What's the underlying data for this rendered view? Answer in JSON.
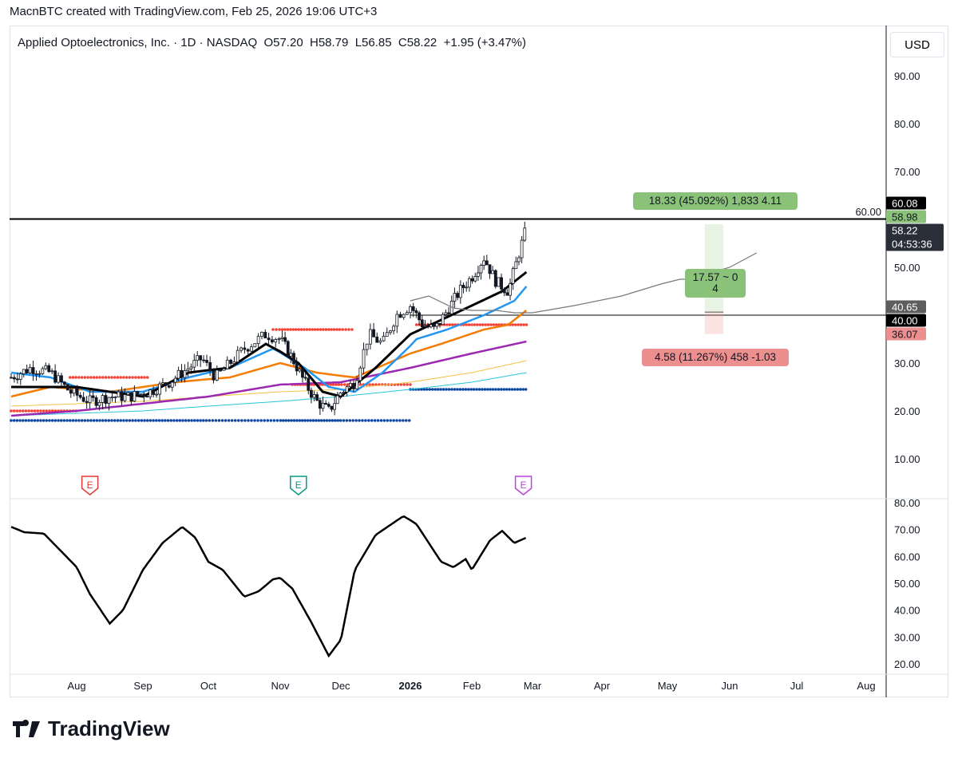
{
  "credit": "MacnBTC created with TradingView.com, Feb 25, 2026 19:06 UTC+3",
  "legend": "Applied Optoelectronics, Inc. · 1D · NASDAQ  O57.20  H58.79  L56.85  C58.22  +1.95 (+3.47%)",
  "currency": "USD",
  "logo_text": "TradingView",
  "colors": {
    "up": "#131722",
    "ema_fast": "#000000",
    "ema_blue": "#2196f3",
    "ema_orange": "#f57c00",
    "ema_purple": "#9c27b0",
    "sma_yellow": "#f5c242",
    "sma_cyan": "#26c6da",
    "dots_red": "#f44336",
    "dots_blue": "#0d47a1",
    "target": "#8bc27a",
    "stop": "#ee8f8f"
  },
  "chart_data": {
    "type": "candlestick",
    "x_unit": "months since Jul 1 2025",
    "price_axis": {
      "ticks": [
        "90.00",
        "80.00",
        "70.00",
        "60.00",
        "50.00",
        "30.00",
        "20.00",
        "10.00"
      ],
      "tick_values": [
        90,
        80,
        70,
        60,
        50,
        30,
        20,
        10
      ],
      "range": [
        0,
        96
      ]
    },
    "time_axis": {
      "labels": [
        "Aug",
        "Sep",
        "Oct",
        "Nov",
        "Dec",
        "2026",
        "Feb",
        "Mar",
        "Apr",
        "May",
        "Jun",
        "Jul",
        "Aug"
      ],
      "positions": [
        1,
        2,
        3,
        4,
        5,
        6,
        7,
        8,
        9,
        10,
        11,
        12,
        13
      ]
    },
    "price_path": [
      [
        0,
        27
      ],
      [
        0.3,
        29
      ],
      [
        0.6,
        28
      ],
      [
        0.9,
        24
      ],
      [
        1.2,
        22
      ],
      [
        1.5,
        23
      ],
      [
        1.8,
        23
      ],
      [
        2.1,
        24
      ],
      [
        2.4,
        26
      ],
      [
        2.7,
        29
      ],
      [
        2.9,
        31
      ],
      [
        3.1,
        27
      ],
      [
        3.3,
        30
      ],
      [
        3.5,
        33
      ],
      [
        3.8,
        36
      ],
      [
        4.0,
        35
      ],
      [
        4.2,
        31
      ],
      [
        4.4,
        26
      ],
      [
        4.6,
        22
      ],
      [
        4.8,
        20
      ],
      [
        5.0,
        24
      ],
      [
        5.2,
        26
      ],
      [
        5.4,
        36
      ],
      [
        5.6,
        34
      ],
      [
        5.8,
        40
      ],
      [
        6.0,
        42
      ],
      [
        6.2,
        38
      ],
      [
        6.4,
        37
      ],
      [
        6.6,
        41
      ],
      [
        6.8,
        45
      ],
      [
        7.0,
        48
      ],
      [
        7.2,
        52
      ],
      [
        7.4,
        47
      ],
      [
        7.6,
        45
      ],
      [
        7.8,
        54
      ],
      [
        7.9,
        58.2
      ]
    ],
    "ema_lines": [
      {
        "name": "EMA black",
        "color": "#000000",
        "points": [
          [
            0,
            25
          ],
          [
            1,
            25
          ],
          [
            2,
            23
          ],
          [
            2.7,
            28
          ],
          [
            3.3,
            29
          ],
          [
            3.8,
            34
          ],
          [
            4.3,
            30
          ],
          [
            4.7,
            24
          ],
          [
            5,
            23
          ],
          [
            5.5,
            29
          ],
          [
            6,
            36
          ],
          [
            6.5,
            39
          ],
          [
            7,
            42
          ],
          [
            7.5,
            45
          ],
          [
            7.9,
            49
          ]
        ]
      },
      {
        "name": "EMA blue",
        "color": "#2196f3",
        "points": [
          [
            0,
            28
          ],
          [
            0.6,
            27
          ],
          [
            1.2,
            24
          ],
          [
            2,
            24
          ],
          [
            2.7,
            27
          ],
          [
            3.3,
            29
          ],
          [
            3.9,
            33
          ],
          [
            4.4,
            29
          ],
          [
            4.8,
            25
          ],
          [
            5.2,
            24
          ],
          [
            5.6,
            28
          ],
          [
            6.1,
            35
          ],
          [
            6.6,
            37
          ],
          [
            7.2,
            40
          ],
          [
            7.7,
            43
          ],
          [
            7.9,
            46
          ]
        ]
      },
      {
        "name": "EMA orange",
        "color": "#f57c00",
        "points": [
          [
            0,
            23
          ],
          [
            0.6,
            25
          ],
          [
            1.5,
            24
          ],
          [
            2.5,
            26
          ],
          [
            3.3,
            27
          ],
          [
            4,
            30
          ],
          [
            4.6,
            28
          ],
          [
            5.2,
            27
          ],
          [
            6,
            32
          ],
          [
            6.5,
            34
          ],
          [
            7.2,
            37
          ],
          [
            7.6,
            38
          ],
          [
            7.9,
            41
          ]
        ]
      },
      {
        "name": "EMA purple",
        "color": "#9c27b0",
        "points": [
          [
            0,
            19
          ],
          [
            1,
            20
          ],
          [
            2,
            21.5
          ],
          [
            3,
            23
          ],
          [
            4,
            25.5
          ],
          [
            5,
            26
          ],
          [
            6,
            29
          ],
          [
            7,
            32
          ],
          [
            7.9,
            34.5
          ]
        ]
      },
      {
        "name": "SMA yellow",
        "color": "#f5c242",
        "points": [
          [
            0,
            21
          ],
          [
            2,
            22
          ],
          [
            4,
            24
          ],
          [
            5,
            24.5
          ],
          [
            6,
            26
          ],
          [
            7,
            28
          ],
          [
            7.9,
            30.5
          ]
        ]
      },
      {
        "name": "SMA cyan",
        "color": "#26c6da",
        "points": [
          [
            0,
            19
          ],
          [
            2,
            20
          ],
          [
            4,
            22
          ],
          [
            5,
            23
          ],
          [
            6,
            24.5
          ],
          [
            7,
            26
          ],
          [
            7.9,
            28
          ]
        ]
      }
    ],
    "levels": [
      {
        "name": "resistance",
        "value": 60.08
      },
      {
        "name": "support",
        "value": 40.0
      }
    ],
    "dot_levels": [
      {
        "color": "#f44336",
        "value": 27,
        "from": 0.9,
        "to": 2.1
      },
      {
        "color": "#f44336",
        "value": 20,
        "from": 0,
        "to": 1
      },
      {
        "color": "#f44336",
        "value": 37,
        "from": 3.9,
        "to": 5.2
      },
      {
        "color": "#f44336",
        "value": 25.5,
        "from": 4.2,
        "to": 6
      },
      {
        "color": "#f44336",
        "value": 38,
        "from": 6.1,
        "to": 7.9
      },
      {
        "color": "#0d47a1",
        "value": 18,
        "from": 0,
        "to": 6
      },
      {
        "color": "#0d47a1",
        "value": 24.5,
        "from": 6,
        "to": 7.9
      }
    ],
    "projection": [
      [
        6,
        43
      ],
      [
        6.3,
        44
      ],
      [
        6.7,
        41.5
      ],
      [
        7,
        41
      ],
      [
        7.4,
        41
      ],
      [
        7.7,
        40.5
      ],
      [
        8,
        40.5
      ],
      [
        8.6,
        42
      ],
      [
        9.3,
        44
      ],
      [
        9.9,
        46.5
      ],
      [
        10.2,
        47.5
      ],
      [
        10.4,
        47.5
      ],
      [
        10.6,
        48.5
      ],
      [
        11,
        50
      ],
      [
        11.4,
        53
      ]
    ],
    "position": {
      "entry": 40.65,
      "target": 58.98,
      "stop": 36.07,
      "from": 10.6,
      "to": 10.9,
      "target_label": "18.33 (45.092%) 1,833 4.11",
      "center_label_1": "17.57 ~ 0",
      "center_label_2": "4",
      "stop_label": "4.58 (11.267%) 458 -1.03"
    },
    "price_labels": [
      {
        "text": "60.08",
        "value": 60.08,
        "bg": "#000000",
        "fg": "#ffffff"
      },
      {
        "text": "58.98",
        "value": 58.98,
        "bg": "#8bc27a",
        "fg": "#131722"
      },
      {
        "text": "58.22",
        "sub": "04:53:36",
        "value": 58.22,
        "bg": "#2a2e39",
        "fg": "#ffffff"
      },
      {
        "text": "40.65",
        "value": 40.65,
        "bg": "#5d5d5d",
        "fg": "#ffffff"
      },
      {
        "text": "40.00",
        "value": 40.0,
        "bg": "#000000",
        "fg": "#ffffff"
      },
      {
        "text": "36.07",
        "value": 36.07,
        "bg": "#ee8f8f",
        "fg": "#131722"
      }
    ],
    "earnings": [
      {
        "t": 1.2,
        "label": "E",
        "color": "#e53935"
      },
      {
        "t": 4.3,
        "label": "E",
        "color": "#089981"
      },
      {
        "t": 7.85,
        "label": "E",
        "color": "#c040e0"
      }
    ],
    "oscillator": {
      "ticks": [
        "80.00",
        "70.00",
        "60.00",
        "50.00",
        "40.00",
        "30.00",
        "20.00"
      ],
      "tick_values": [
        80,
        70,
        60,
        50,
        40,
        30,
        20
      ],
      "values": [
        [
          0,
          71
        ],
        [
          0.2,
          69
        ],
        [
          0.5,
          68.5
        ],
        [
          0.8,
          61
        ],
        [
          1.0,
          56
        ],
        [
          1.2,
          46
        ],
        [
          1.5,
          35
        ],
        [
          1.7,
          40
        ],
        [
          2.0,
          55
        ],
        [
          2.3,
          65
        ],
        [
          2.6,
          71
        ],
        [
          2.8,
          67
        ],
        [
          3.0,
          58
        ],
        [
          3.2,
          55
        ],
        [
          3.5,
          45
        ],
        [
          3.7,
          47
        ],
        [
          3.9,
          51.5
        ],
        [
          4.0,
          52
        ],
        [
          4.2,
          48
        ],
        [
          4.5,
          36
        ],
        [
          4.8,
          23
        ],
        [
          5.0,
          29
        ],
        [
          5.2,
          55
        ],
        [
          5.5,
          68
        ],
        [
          5.9,
          75
        ],
        [
          6.1,
          72
        ],
        [
          6.5,
          58
        ],
        [
          6.7,
          56
        ],
        [
          6.9,
          59
        ],
        [
          7.0,
          55
        ],
        [
          7.3,
          66
        ],
        [
          7.5,
          69.5
        ],
        [
          7.7,
          65
        ],
        [
          7.9,
          67
        ]
      ]
    }
  }
}
